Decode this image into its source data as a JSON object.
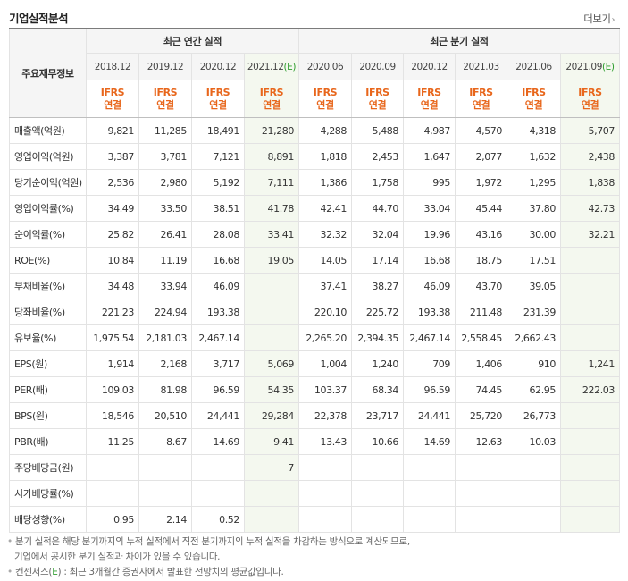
{
  "header": {
    "title": "기업실적분석",
    "more_label": "더보기",
    "more_icon": "chevron-right-icon"
  },
  "table": {
    "row_header_label": "주요재무정보",
    "group_annual": "최근 연간 실적",
    "group_quarter": "최근 분기 실적",
    "columns": [
      {
        "period": "2018.12",
        "est": ""
      },
      {
        "period": "2019.12",
        "est": ""
      },
      {
        "period": "2020.12",
        "est": ""
      },
      {
        "period": "2021.12",
        "est": "(E)"
      },
      {
        "period": "2020.06",
        "est": ""
      },
      {
        "period": "2020.09",
        "est": ""
      },
      {
        "period": "2020.12",
        "est": ""
      },
      {
        "period": "2021.03",
        "est": ""
      },
      {
        "period": "2021.06",
        "est": ""
      },
      {
        "period": "2021.09",
        "est": "(E)"
      }
    ],
    "basis_line1": "IFRS",
    "basis_line2": "연결",
    "rows": [
      {
        "label": "매출액(억원)",
        "values": [
          "9,821",
          "11,285",
          "18,491",
          "21,280",
          "4,288",
          "5,488",
          "4,987",
          "4,570",
          "4,318",
          "5,707"
        ]
      },
      {
        "label": "영업이익(억원)",
        "values": [
          "3,387",
          "3,781",
          "7,121",
          "8,891",
          "1,818",
          "2,453",
          "1,647",
          "2,077",
          "1,632",
          "2,438"
        ]
      },
      {
        "label": "당기순이익(억원)",
        "values": [
          "2,536",
          "2,980",
          "5,192",
          "7,111",
          "1,386",
          "1,758",
          "995",
          "1,972",
          "1,295",
          "1,838"
        ]
      },
      {
        "label": "영업이익률(%)",
        "values": [
          "34.49",
          "33.50",
          "38.51",
          "41.78",
          "42.41",
          "44.70",
          "33.04",
          "45.44",
          "37.80",
          "42.73"
        ]
      },
      {
        "label": "순이익률(%)",
        "values": [
          "25.82",
          "26.41",
          "28.08",
          "33.41",
          "32.32",
          "32.04",
          "19.96",
          "43.16",
          "30.00",
          "32.21"
        ]
      },
      {
        "label": "ROE(%)",
        "values": [
          "10.84",
          "11.19",
          "16.68",
          "19.05",
          "14.05",
          "17.14",
          "16.68",
          "18.75",
          "17.51",
          ""
        ]
      },
      {
        "label": "부채비율(%)",
        "values": [
          "34.48",
          "33.94",
          "46.09",
          "",
          "37.41",
          "38.27",
          "46.09",
          "43.70",
          "39.05",
          ""
        ]
      },
      {
        "label": "당좌비율(%)",
        "values": [
          "221.23",
          "224.94",
          "193.38",
          "",
          "220.10",
          "225.72",
          "193.38",
          "211.48",
          "231.39",
          ""
        ]
      },
      {
        "label": "유보율(%)",
        "values": [
          "1,975.54",
          "2,181.03",
          "2,467.14",
          "",
          "2,265.20",
          "2,394.35",
          "2,467.14",
          "2,558.45",
          "2,662.43",
          ""
        ]
      },
      {
        "label": "EPS(원)",
        "values": [
          "1,914",
          "2,168",
          "3,717",
          "5,069",
          "1,004",
          "1,240",
          "709",
          "1,406",
          "910",
          "1,241"
        ]
      },
      {
        "label": "PER(배)",
        "values": [
          "109.03",
          "81.98",
          "96.59",
          "54.35",
          "103.37",
          "68.34",
          "96.59",
          "74.45",
          "62.95",
          "222.03"
        ]
      },
      {
        "label": "BPS(원)",
        "values": [
          "18,546",
          "20,510",
          "24,441",
          "29,284",
          "22,378",
          "23,717",
          "24,441",
          "25,720",
          "26,773",
          ""
        ]
      },
      {
        "label": "PBR(배)",
        "values": [
          "11.25",
          "8.67",
          "14.69",
          "9.41",
          "13.43",
          "10.66",
          "14.69",
          "12.63",
          "10.03",
          ""
        ]
      },
      {
        "label": "주당배당금(원)",
        "values": [
          "",
          "",
          "",
          "7",
          "",
          "",
          "",
          "",
          "",
          ""
        ]
      },
      {
        "label": "시가배당률(%)",
        "values": [
          "",
          "",
          "",
          "",
          "",
          "",
          "",
          "",
          "",
          ""
        ]
      },
      {
        "label": "배당성향(%)",
        "values": [
          "0.95",
          "2.14",
          "0.52",
          "",
          "",
          "",
          "",
          "",
          "",
          ""
        ]
      }
    ]
  },
  "notes": {
    "note1_line1": "분기 실적은 해당 분기까지의 누적 실적에서 직전 분기까지의 누적 실적을 차감하는 방식으로 계산되므로,",
    "note1_line2": "기업에서 공시한 분기 실적과 차이가 있을 수 있습니다.",
    "note2_prefix": "컨센서스(",
    "note2_e": "E",
    "note2_suffix": ") : 최근 3개월간 증권사에서 발표한 전망치의 평균값입니다."
  },
  "colors": {
    "estimate_bg": "#f4f8ef",
    "ifrs_orange": "#e8661b",
    "estimate_green": "#2e9d2e"
  }
}
